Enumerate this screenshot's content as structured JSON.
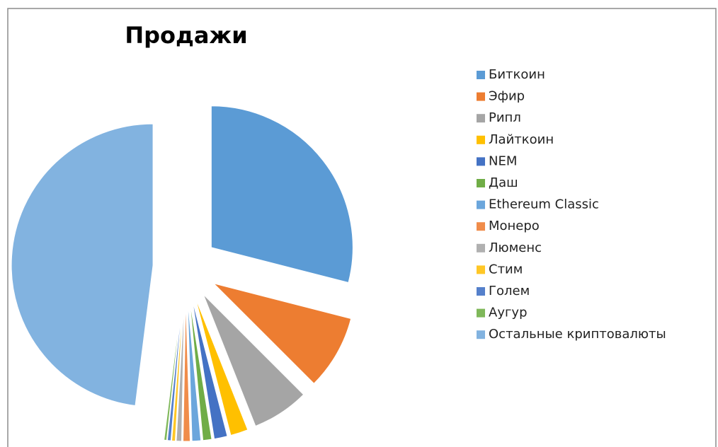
{
  "chart_data": {
    "type": "pie",
    "title": "Продажи",
    "categories": [
      "Биткоин",
      "Эфир",
      "Рипл",
      "Лайткоин",
      "NEM",
      "Даш",
      "Ethereum Classic",
      "Монеро",
      "Люменс",
      "Стим",
      "Голем",
      "Аугур",
      "Остальные криптовалюты"
    ],
    "values": [
      29,
      8.5,
      6.5,
      2,
      1.5,
      1,
      1,
      0.8,
      0.6,
      0.4,
      0.4,
      0.3,
      48
    ],
    "colors": [
      "#5b9bd5",
      "#ed7d31",
      "#a5a5a5",
      "#ffc000",
      "#4472c4",
      "#70ad47",
      "#6ba6dc",
      "#f08c4a",
      "#b0b0b0",
      "#ffc726",
      "#5580cb",
      "#7fb85a",
      "#82b3e0"
    ],
    "legend": "right"
  }
}
